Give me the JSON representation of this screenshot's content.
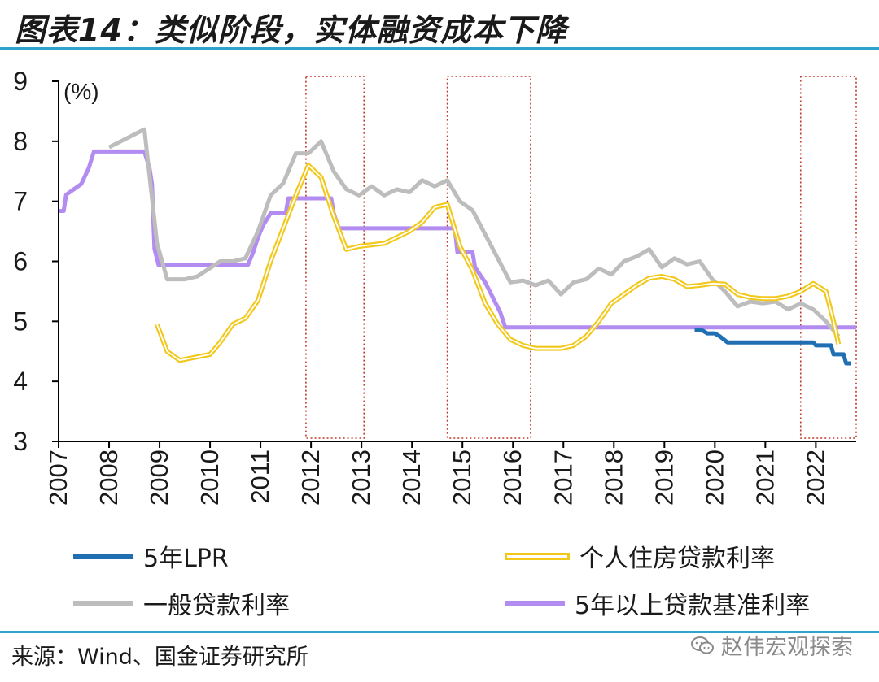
{
  "header": {
    "title": "图表14：类似阶段，实体融资成本下降"
  },
  "footer": {
    "source": "来源：Wind、国金证券研究所",
    "watermark": "赵伟宏观探索"
  },
  "colors": {
    "lpr": "#1f6fb2",
    "mortgage": "#f2c81b",
    "general": "#bdbdbd",
    "benchmark": "#b28cf0",
    "highlight_box": "#c0392b",
    "rule": "#2fa3c9"
  },
  "chart_data": {
    "type": "line",
    "ylabel": "(%)",
    "ylim": [
      3,
      9
    ],
    "yticks": [
      3,
      4,
      5,
      6,
      7,
      8,
      9
    ],
    "xlim": [
      2007,
      2022.8
    ],
    "xticks": [
      "2007",
      "2008",
      "2009",
      "2010",
      "2011",
      "2012",
      "2013",
      "2014",
      "2015",
      "2016",
      "2017",
      "2018",
      "2019",
      "2020",
      "2021",
      "2022"
    ],
    "highlight_periods": [
      [
        2011.9,
        2013.05
      ],
      [
        2014.7,
        2016.35
      ],
      [
        2021.7,
        2022.8
      ]
    ],
    "series": [
      {
        "name": "5年LPR",
        "key": "lpr",
        "points": [
          [
            2019.6,
            4.85
          ],
          [
            2019.75,
            4.85
          ],
          [
            2019.85,
            4.8
          ],
          [
            2020.0,
            4.8
          ],
          [
            2020.1,
            4.75
          ],
          [
            2020.25,
            4.65
          ],
          [
            2021.95,
            4.65
          ],
          [
            2022.0,
            4.6
          ],
          [
            2022.3,
            4.6
          ],
          [
            2022.35,
            4.45
          ],
          [
            2022.55,
            4.45
          ],
          [
            2022.6,
            4.3
          ],
          [
            2022.7,
            4.3
          ]
        ]
      },
      {
        "name": "个人住房贷款利率",
        "key": "mortgage",
        "points": [
          [
            2008.95,
            4.95
          ],
          [
            2009.15,
            4.5
          ],
          [
            2009.4,
            4.35
          ],
          [
            2009.7,
            4.4
          ],
          [
            2010.0,
            4.45
          ],
          [
            2010.2,
            4.65
          ],
          [
            2010.45,
            4.95
          ],
          [
            2010.7,
            5.05
          ],
          [
            2010.95,
            5.35
          ],
          [
            2011.2,
            6.0
          ],
          [
            2011.45,
            6.55
          ],
          [
            2011.7,
            7.1
          ],
          [
            2011.95,
            7.6
          ],
          [
            2012.2,
            7.4
          ],
          [
            2012.45,
            6.75
          ],
          [
            2012.7,
            6.2
          ],
          [
            2012.95,
            6.25
          ],
          [
            2013.45,
            6.3
          ],
          [
            2013.95,
            6.5
          ],
          [
            2014.2,
            6.65
          ],
          [
            2014.45,
            6.9
          ],
          [
            2014.7,
            6.95
          ],
          [
            2014.95,
            6.25
          ],
          [
            2015.2,
            5.85
          ],
          [
            2015.45,
            5.3
          ],
          [
            2015.7,
            4.95
          ],
          [
            2015.95,
            4.7
          ],
          [
            2016.2,
            4.6
          ],
          [
            2016.45,
            4.55
          ],
          [
            2016.95,
            4.55
          ],
          [
            2017.2,
            4.6
          ],
          [
            2017.45,
            4.75
          ],
          [
            2017.7,
            5.0
          ],
          [
            2017.95,
            5.3
          ],
          [
            2018.2,
            5.45
          ],
          [
            2018.45,
            5.6
          ],
          [
            2018.7,
            5.72
          ],
          [
            2018.95,
            5.75
          ],
          [
            2019.2,
            5.7
          ],
          [
            2019.45,
            5.58
          ],
          [
            2019.7,
            5.6
          ],
          [
            2019.95,
            5.63
          ],
          [
            2020.2,
            5.62
          ],
          [
            2020.45,
            5.45
          ],
          [
            2020.7,
            5.4
          ],
          [
            2020.95,
            5.38
          ],
          [
            2021.2,
            5.38
          ],
          [
            2021.45,
            5.42
          ],
          [
            2021.7,
            5.5
          ],
          [
            2021.95,
            5.63
          ],
          [
            2022.2,
            5.5
          ],
          [
            2022.35,
            5.0
          ],
          [
            2022.45,
            4.62
          ]
        ]
      },
      {
        "name": "一般贷款利率",
        "key": "general",
        "points": [
          [
            2008.0,
            7.9
          ],
          [
            2008.7,
            8.2
          ],
          [
            2008.95,
            6.3
          ],
          [
            2009.15,
            5.7
          ],
          [
            2009.5,
            5.7
          ],
          [
            2009.75,
            5.75
          ],
          [
            2010.2,
            6.0
          ],
          [
            2010.45,
            6.0
          ],
          [
            2010.7,
            6.05
          ],
          [
            2010.95,
            6.5
          ],
          [
            2011.2,
            7.1
          ],
          [
            2011.45,
            7.3
          ],
          [
            2011.7,
            7.8
          ],
          [
            2011.95,
            7.8
          ],
          [
            2012.2,
            8.0
          ],
          [
            2012.45,
            7.5
          ],
          [
            2012.7,
            7.2
          ],
          [
            2012.95,
            7.1
          ],
          [
            2013.2,
            7.25
          ],
          [
            2013.45,
            7.1
          ],
          [
            2013.7,
            7.2
          ],
          [
            2013.95,
            7.15
          ],
          [
            2014.2,
            7.35
          ],
          [
            2014.45,
            7.25
          ],
          [
            2014.7,
            7.35
          ],
          [
            2014.95,
            7.0
          ],
          [
            2015.2,
            6.85
          ],
          [
            2015.45,
            6.45
          ],
          [
            2015.7,
            6.05
          ],
          [
            2015.95,
            5.65
          ],
          [
            2016.2,
            5.68
          ],
          [
            2016.45,
            5.6
          ],
          [
            2016.7,
            5.68
          ],
          [
            2016.95,
            5.45
          ],
          [
            2017.2,
            5.65
          ],
          [
            2017.45,
            5.7
          ],
          [
            2017.7,
            5.88
          ],
          [
            2017.95,
            5.78
          ],
          [
            2018.2,
            6.0
          ],
          [
            2018.45,
            6.08
          ],
          [
            2018.7,
            6.2
          ],
          [
            2018.95,
            5.9
          ],
          [
            2019.2,
            6.05
          ],
          [
            2019.45,
            5.95
          ],
          [
            2019.7,
            6.0
          ],
          [
            2019.95,
            5.7
          ],
          [
            2020.2,
            5.5
          ],
          [
            2020.45,
            5.25
          ],
          [
            2020.7,
            5.33
          ],
          [
            2020.95,
            5.3
          ],
          [
            2021.2,
            5.33
          ],
          [
            2021.45,
            5.2
          ],
          [
            2021.7,
            5.3
          ],
          [
            2021.95,
            5.2
          ],
          [
            2022.2,
            5.0
          ],
          [
            2022.45,
            4.75
          ]
        ]
      },
      {
        "name": "5年以上贷款基准利率",
        "key": "benchmark",
        "points": [
          [
            2007.0,
            6.84
          ],
          [
            2007.1,
            6.84
          ],
          [
            2007.15,
            7.11
          ],
          [
            2007.3,
            7.2
          ],
          [
            2007.45,
            7.29
          ],
          [
            2007.6,
            7.56
          ],
          [
            2007.7,
            7.83
          ],
          [
            2008.7,
            7.83
          ],
          [
            2008.8,
            7.56
          ],
          [
            2008.85,
            7.29
          ],
          [
            2008.9,
            6.21
          ],
          [
            2008.98,
            5.94
          ],
          [
            2010.75,
            5.94
          ],
          [
            2010.85,
            6.14
          ],
          [
            2010.95,
            6.4
          ],
          [
            2011.05,
            6.6
          ],
          [
            2011.2,
            6.8
          ],
          [
            2011.5,
            6.8
          ],
          [
            2011.55,
            7.05
          ],
          [
            2012.4,
            7.05
          ],
          [
            2012.45,
            6.8
          ],
          [
            2012.55,
            6.55
          ],
          [
            2014.85,
            6.55
          ],
          [
            2014.9,
            6.15
          ],
          [
            2015.2,
            6.15
          ],
          [
            2015.25,
            5.9
          ],
          [
            2015.45,
            5.65
          ],
          [
            2015.6,
            5.4
          ],
          [
            2015.75,
            5.15
          ],
          [
            2015.85,
            4.9
          ],
          [
            2022.8,
            4.9
          ]
        ]
      }
    ]
  },
  "legend": [
    {
      "label": "5年LPR",
      "key": "lpr",
      "style": "solid"
    },
    {
      "label": "个人住房贷款利率",
      "key": "mortgage",
      "style": "double"
    },
    {
      "label": "一般贷款利率",
      "key": "general",
      "style": "solid"
    },
    {
      "label": "5年以上贷款基准利率",
      "key": "benchmark",
      "style": "solid"
    }
  ]
}
